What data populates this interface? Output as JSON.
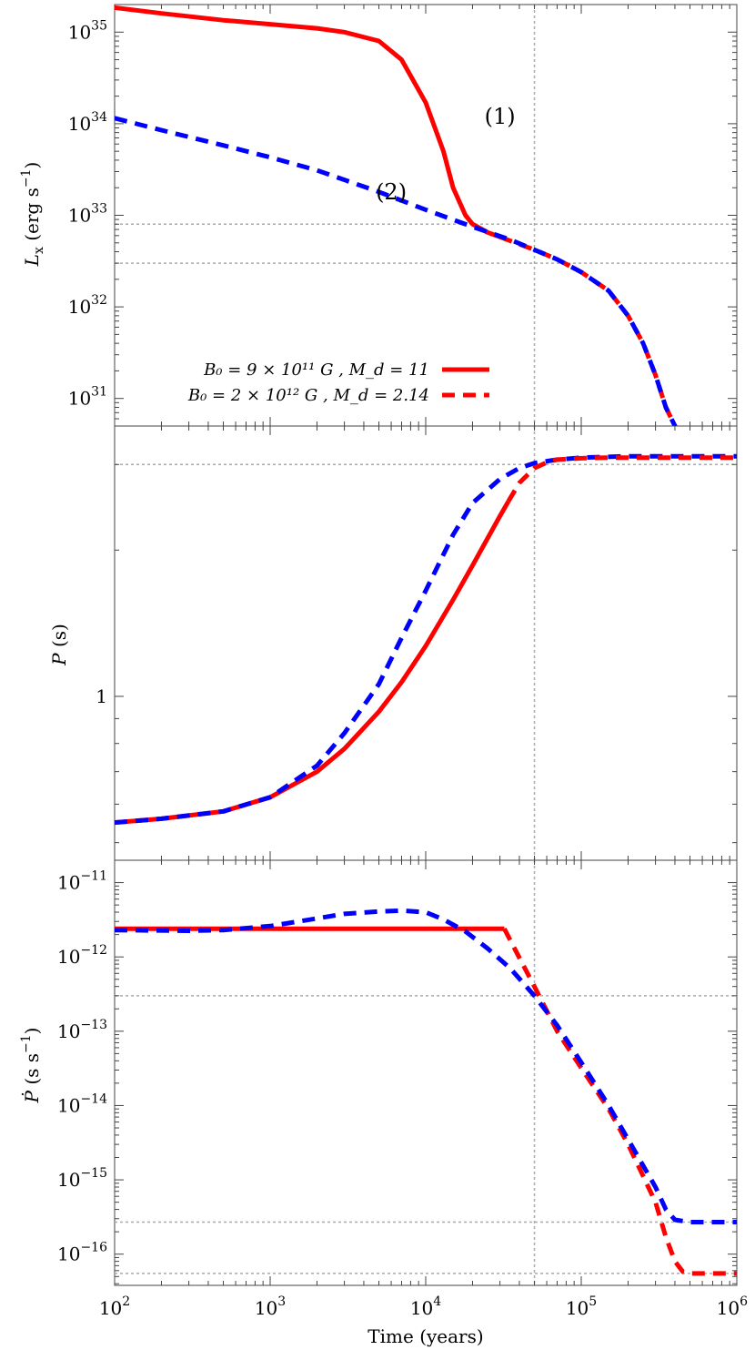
{
  "chart_data": [
    {
      "type": "line",
      "panel": "top",
      "ylabel": "L_x (erg s^-1)",
      "xscale": "log",
      "yscale": "log",
      "xlim": [
        100,
        1000000
      ],
      "ylim": [
        5e+30,
        2e+35
      ],
      "yticks": [
        {
          "value": 1e+31,
          "base": "10",
          "exp": "31"
        },
        {
          "value": 1e+32,
          "base": "10",
          "exp": "32"
        },
        {
          "value": 1e+33,
          "base": "10",
          "exp": "33"
        },
        {
          "value": 1e+34,
          "base": "10",
          "exp": "34"
        },
        {
          "value": 1e+35,
          "base": "10",
          "exp": "35"
        }
      ],
      "hlines": [
        8e+32,
        3e+32
      ],
      "vline": 50000,
      "annotations": [
        {
          "text": "(1)",
          "x": 30000,
          "y": 1e+34
        },
        {
          "text": "(2)",
          "x": 6000,
          "y": 1.5e+33
        }
      ],
      "legend": {
        "placement": "bottom-left",
        "entries": [
          {
            "label": "B₀ = 9 × 10¹¹ G , M_d =   11",
            "series": 0
          },
          {
            "label": "B₀ = 2 × 10¹² G , M_d = 2.14",
            "series": 1
          }
        ]
      },
      "series": [
        {
          "color": "#ff0000",
          "style": "solid",
          "x": [
            100,
            200,
            500,
            1000,
            2000,
            3000,
            5000,
            7000,
            10000,
            13000,
            15000,
            18000,
            20000,
            25000,
            30000
          ],
          "y": [
            1.85e+35,
            1.6e+35,
            1.35e+35,
            1.22e+35,
            1.1e+35,
            1e+35,
            8e+34,
            5e+34,
            1.7e+34,
            5e+33,
            2e+33,
            1e+33,
            8e+32,
            6.5e+32,
            5.8e+32
          ]
        },
        {
          "color": "#ff0000",
          "style": "dashed",
          "x": [
            30000,
            50000,
            70000,
            100000,
            150000,
            200000,
            250000,
            300000,
            350000,
            400000,
            450000
          ],
          "y": [
            5.8e+32,
            4.2e+32,
            3.3e+32,
            2.4e+32,
            1.5e+32,
            8e+31,
            4e+31,
            1.8e+31,
            8e+30,
            5e+30,
            3.5e+30
          ]
        },
        {
          "color": "#0000ff",
          "style": "dashed",
          "x": [
            100,
            200,
            500,
            1000,
            2000,
            5000,
            10000,
            20000,
            35000,
            50000,
            70000,
            100000,
            150000,
            200000,
            250000,
            300000,
            350000,
            400000,
            450000
          ],
          "y": [
            1.15e+34,
            8.5e+33,
            5.8e+33,
            4.3e+33,
            3.1e+33,
            1.8e+33,
            1.15e+33,
            7.5e+32,
            5.4e+32,
            4.2e+32,
            3.3e+32,
            2.4e+32,
            1.5e+32,
            8e+31,
            4e+31,
            1.8e+31,
            8e+30,
            5e+30,
            3.5e+30
          ]
        }
      ]
    },
    {
      "type": "line",
      "panel": "middle",
      "ylabel": "P (s)",
      "xscale": "log",
      "yscale": "log",
      "xlim": [
        100,
        1000000
      ],
      "ylim": [
        0.46,
        3.6
      ],
      "yticks": [
        {
          "value": 1,
          "base": "1",
          "exp": ""
        }
      ],
      "hlines": [
        3.0
      ],
      "vline": 50000,
      "series": [
        {
          "color": "#ff0000",
          "style": "solid",
          "x": [
            100,
            200,
            500,
            1000,
            2000,
            3000,
            5000,
            7000,
            10000,
            15000,
            20000,
            30000,
            34000
          ],
          "y": [
            0.55,
            0.56,
            0.58,
            0.62,
            0.7,
            0.78,
            0.93,
            1.07,
            1.27,
            1.58,
            1.86,
            2.35,
            2.52
          ]
        },
        {
          "color": "#0000ff",
          "style": "dashed",
          "x": [
            100,
            200,
            500,
            1000,
            2000,
            3000,
            5000,
            7000,
            10000,
            15000,
            20000,
            30000,
            40000,
            50000,
            70000,
            100000,
            200000,
            400000,
            1000000
          ],
          "y": [
            0.55,
            0.56,
            0.58,
            0.62,
            0.72,
            0.84,
            1.06,
            1.32,
            1.65,
            2.15,
            2.5,
            2.8,
            2.95,
            3.02,
            3.07,
            3.1,
            3.12,
            3.12,
            3.12
          ]
        },
        {
          "color": "#ff0000",
          "style": "dashed",
          "x": [
            34000,
            40000,
            50000,
            60000,
            70000,
            100000,
            150000,
            200000,
            300000,
            500000,
            1000000
          ],
          "y": [
            2.52,
            2.75,
            2.95,
            3.03,
            3.07,
            3.09,
            3.1,
            3.1,
            3.1,
            3.1,
            3.1
          ]
        }
      ]
    },
    {
      "type": "line",
      "panel": "bottom",
      "ylabel": "Ṗ (s s^-1)",
      "xlabel": "Time (years)",
      "xscale": "log",
      "yscale": "log",
      "xlim": [
        100,
        1000000
      ],
      "ylim": [
        3.8e-17,
        2e-11
      ],
      "xticks": [
        {
          "value": 100,
          "base": "10",
          "exp": "2"
        },
        {
          "value": 1000,
          "base": "10",
          "exp": "3"
        },
        {
          "value": 10000,
          "base": "10",
          "exp": "4"
        },
        {
          "value": 100000,
          "base": "10",
          "exp": "5"
        },
        {
          "value": 1000000,
          "base": "10",
          "exp": "6"
        }
      ],
      "yticks": [
        {
          "value": 1e-16,
          "base": "10",
          "exp": "−16"
        },
        {
          "value": 1e-15,
          "base": "10",
          "exp": "−15"
        },
        {
          "value": 1e-14,
          "base": "10",
          "exp": "−14"
        },
        {
          "value": 1e-13,
          "base": "10",
          "exp": "−13"
        },
        {
          "value": 1e-12,
          "base": "10",
          "exp": "−12"
        },
        {
          "value": 1e-11,
          "base": "10",
          "exp": "−11"
        }
      ],
      "hlines": [
        3e-13,
        2.7e-16,
        5.5e-17
      ],
      "vline": 50000,
      "series": [
        {
          "color": "#ff0000",
          "style": "solid",
          "x": [
            100,
            1000,
            10000,
            32000
          ],
          "y": [
            2.4e-12,
            2.4e-12,
            2.4e-12,
            2.4e-12
          ]
        },
        {
          "color": "#ff0000",
          "style": "dashed",
          "x": [
            32000,
            38000,
            50000,
            70000,
            100000,
            150000,
            200000,
            300000,
            350000,
            400000,
            450000,
            500000,
            700000,
            1000000
          ],
          "y": [
            2.4e-12,
            1.2e-12,
            4e-13,
            1e-13,
            3.2e-14,
            9e-15,
            3e-15,
            5e-16,
            1.7e-16,
            8e-17,
            5.8e-17,
            5.5e-17,
            5.5e-17,
            5.5e-17
          ]
        },
        {
          "color": "#0000ff",
          "style": "dashed",
          "x": [
            100,
            300,
            500,
            1000,
            2000,
            3000,
            5000,
            7000,
            10000,
            13000,
            18000,
            25000,
            35000,
            50000,
            70000,
            100000,
            150000,
            200000,
            300000,
            350000,
            400000,
            500000,
            700000,
            1000000
          ],
          "y": [
            2.3e-12,
            2.25e-12,
            2.3e-12,
            2.6e-12,
            3.3e-12,
            3.8e-12,
            4.1e-12,
            4.2e-12,
            4e-12,
            3.2e-12,
            2.2e-12,
            1.3e-12,
            7e-13,
            3e-13,
            1.2e-13,
            3.8e-14,
            1e-14,
            3.5e-15,
            8e-16,
            4e-16,
            2.9e-16,
            2.7e-16,
            2.7e-16,
            2.7e-16
          ]
        }
      ]
    }
  ]
}
